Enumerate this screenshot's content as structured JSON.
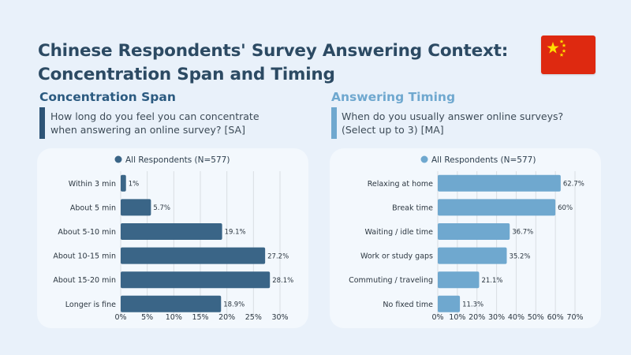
{
  "header": {
    "title_line1": "Chinese Respondents' Survey Answering Context:",
    "title_line2": "Concentration Span and Timing",
    "flag_icon": "china-flag-icon"
  },
  "left": {
    "section_title": "Concentration Span",
    "question_line1": "How long do you feel you can concentrate",
    "question_line2": "when answering an online survey? [SA]"
  },
  "right": {
    "section_title": "Answering Timing",
    "question_line1": "When do you usually answer online surveys?",
    "question_line2": "(Select up to 3) [MA]"
  },
  "colors": {
    "left_bar": "#3a6587",
    "right_bar": "#6fa8cf"
  },
  "chart_data": [
    {
      "type": "bar",
      "orientation": "horizontal",
      "title": "",
      "legend": "All  Respondents (N=577)",
      "legend_position": "top",
      "categories": [
        "Within 3 min",
        "About 5 min",
        "About 5-10 min",
        "About 10-15 min",
        "About 15-20 min",
        "Longer is fine"
      ],
      "values": [
        1,
        5.7,
        19.1,
        27.2,
        28.1,
        18.9
      ],
      "value_labels": [
        "1%",
        "5.7%",
        "19.1%",
        "27.2%",
        "28.1%",
        "18.9%"
      ],
      "xlim": [
        0,
        30
      ],
      "xticks": [
        "0%",
        "5%",
        "10%",
        "15%",
        "20%",
        "25%",
        "30%"
      ],
      "grid": true
    },
    {
      "type": "bar",
      "orientation": "horizontal",
      "title": "",
      "legend": "All  Respondents (N=577)",
      "legend_position": "top",
      "categories": [
        "Relaxing at home",
        "Break time",
        "Waiting / idle time",
        "Work or study gaps",
        "Commuting / traveling",
        "No fixed time"
      ],
      "values": [
        62.7,
        60,
        36.7,
        35.2,
        21.1,
        11.3
      ],
      "value_labels": [
        "62.7%",
        "60%",
        "36.7%",
        "35.2%",
        "21.1%",
        "11.3%"
      ],
      "xlim": [
        0,
        70
      ],
      "xticks": [
        "0%",
        "10%",
        "20%",
        "30%",
        "40%",
        "50%",
        "60%",
        "70%"
      ],
      "grid": true
    }
  ]
}
